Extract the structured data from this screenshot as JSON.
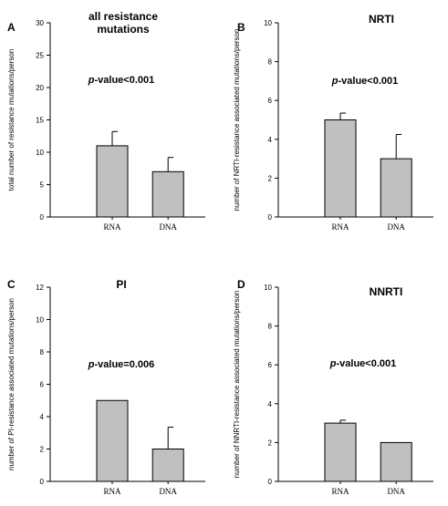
{
  "chart_data": [
    {
      "panel": "A",
      "type": "bar",
      "title_lines": [
        "all resistance",
        "mutations"
      ],
      "pvalue_prefix": "p",
      "pvalue_rest": "-value<0.001",
      "ylabel": "total number of resistance mutations/person",
      "categories": [
        "RNA",
        "DNA"
      ],
      "values": [
        11,
        7
      ],
      "errors": [
        2.2,
        2.2
      ],
      "ylim": [
        0,
        30
      ],
      "yticks": [
        0,
        5,
        10,
        15,
        20,
        25,
        30
      ],
      "grid": false
    },
    {
      "panel": "B",
      "type": "bar",
      "title_lines": [
        "NRTI"
      ],
      "pvalue_prefix": "p",
      "pvalue_rest": "-value<0.001",
      "ylabel": "number of NRTI-resistance associated mutations/person",
      "categories": [
        "RNA",
        "DNA"
      ],
      "values": [
        5,
        3
      ],
      "errors": [
        0.35,
        1.25
      ],
      "ylim": [
        0,
        10
      ],
      "yticks": [
        0,
        2,
        4,
        6,
        8,
        10
      ],
      "grid": false
    },
    {
      "panel": "C",
      "type": "bar",
      "title_lines": [
        "PI"
      ],
      "pvalue_prefix": "p",
      "pvalue_rest": "-value=0.006",
      "ylabel": "number of PI-resistance associated mutations/person",
      "categories": [
        "RNA",
        "DNA"
      ],
      "values": [
        5,
        2
      ],
      "errors": [
        0,
        1.35
      ],
      "ylim": [
        0,
        12
      ],
      "yticks": [
        0,
        2,
        4,
        6,
        8,
        10,
        12
      ],
      "grid": false
    },
    {
      "panel": "D",
      "type": "bar",
      "title_lines": [
        "NNRTI"
      ],
      "pvalue_prefix": "p",
      "pvalue_rest": "-value<0.001",
      "ylabel": "number of NNRTI-resistance associated mutations/person",
      "categories": [
        "RNA",
        "DNA"
      ],
      "values": [
        3,
        2
      ],
      "errors": [
        0.15,
        0
      ],
      "ylim": [
        0,
        10
      ],
      "yticks": [
        0,
        2,
        4,
        6,
        8,
        10
      ],
      "grid": false
    }
  ]
}
